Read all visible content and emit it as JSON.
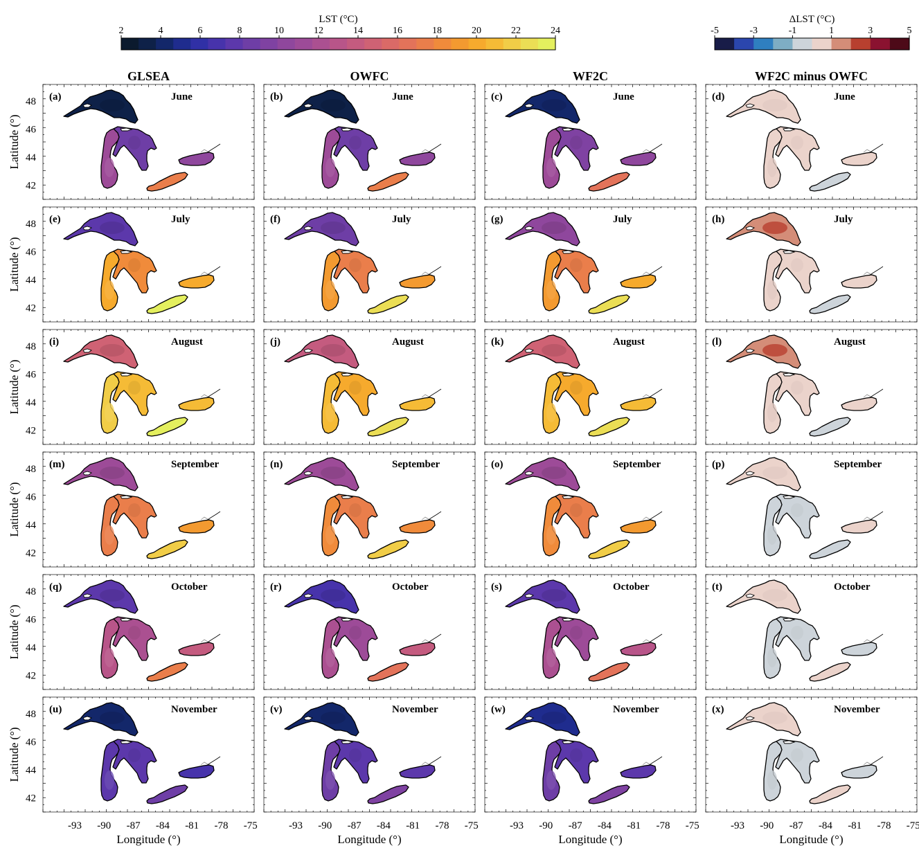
{
  "colorbars": {
    "lst": {
      "title": "LST (°C)",
      "ticks": [
        "2",
        "4",
        "6",
        "8",
        "10",
        "12",
        "14",
        "16",
        "18",
        "20",
        "22",
        "24"
      ],
      "colors": [
        "#0b1a2e",
        "#0e2148",
        "#13276a",
        "#1f2c8e",
        "#3030a6",
        "#4733ab",
        "#5c38ab",
        "#6e3ea6",
        "#7f42a2",
        "#8f479d",
        "#9d4b98",
        "#ab5091",
        "#b85589",
        "#c45b7f",
        "#cf6274",
        "#da6a67",
        "#e3735a",
        "#ea7e4b",
        "#f08b3b",
        "#f39a30",
        "#f6aa2d",
        "#f5bb36",
        "#f1cd47",
        "#ebde55",
        "#e4ef5e"
      ]
    },
    "dlst": {
      "title": "ΔLST (°C)",
      "ticks": [
        "-5",
        "-3",
        "-1",
        "1",
        "3",
        "5"
      ],
      "colors": [
        "#181c48",
        "#2b46ad",
        "#2f7fc0",
        "#7eadc4",
        "#cdd4da",
        "#ebd3cb",
        "#d48d78",
        "#b8402f",
        "#8a1230",
        "#4d0a18"
      ]
    }
  },
  "columns": [
    "GLSEA",
    "OWFC",
    "WF2C",
    "WF2C minus OWFC"
  ],
  "months": [
    "June",
    "July",
    "August",
    "September",
    "October",
    "November"
  ],
  "panel_letters": [
    [
      "(a)",
      "(b)",
      "(c)",
      "(d)"
    ],
    [
      "(e)",
      "(f)",
      "(g)",
      "(h)"
    ],
    [
      "(i)",
      "(j)",
      "(k)",
      "(l)"
    ],
    [
      "(m)",
      "(n)",
      "(o)",
      "(p)"
    ],
    [
      "(q)",
      "(r)",
      "(s)",
      "(t)"
    ],
    [
      "(u)",
      "(v)",
      "(w)",
      "(x)"
    ]
  ],
  "axes": {
    "ylabel": "Latitude (°)",
    "xlabel": "Longitude (°)",
    "yticks": [
      "48",
      "46",
      "44",
      "42"
    ],
    "xticks": [
      "-93",
      "-90",
      "-87",
      "-84",
      "-81",
      "-78",
      "-75"
    ]
  },
  "map_data": {
    "variable": "Lake surface temperature",
    "lake_temperature_c": {
      "GLSEA": {
        "June": {
          "superior": 3.5,
          "michigan": 11,
          "huron": 9,
          "erie": 17,
          "ontario": 10
        },
        "July": {
          "superior": 8,
          "michigan": 20,
          "huron": 18,
          "erie": 23.5,
          "ontario": 20
        },
        "August": {
          "superior": 15,
          "michigan": 21.5,
          "huron": 20.5,
          "erie": 23.5,
          "ontario": 21
        },
        "September": {
          "superior": 11,
          "michigan": 17.5,
          "huron": 17,
          "erie": 21.5,
          "ontario": 19
        },
        "October": {
          "superior": 7.5,
          "michigan": 13,
          "huron": 12,
          "erie": 17,
          "ontario": 14
        },
        "November": {
          "superior": 4.5,
          "michigan": 8,
          "huron": 7.5,
          "erie": 9,
          "ontario": 7
        }
      },
      "OWFC": {
        "June": {
          "superior": 3.5,
          "michigan": 11,
          "huron": 9,
          "erie": 17,
          "ontario": 10
        },
        "July": {
          "superior": 9,
          "michigan": 19,
          "huron": 17,
          "erie": 23,
          "ontario": 19.5
        },
        "August": {
          "superior": 13.5,
          "michigan": 21,
          "huron": 20,
          "erie": 23,
          "ontario": 20.5
        },
        "September": {
          "superior": 11,
          "michigan": 18,
          "huron": 17.5,
          "erie": 22,
          "ontario": 18.5
        },
        "October": {
          "superior": 7,
          "michigan": 12.5,
          "huron": 11.5,
          "erie": 16.5,
          "ontario": 13.5
        },
        "November": {
          "superior": 4.5,
          "michigan": 8.5,
          "huron": 8,
          "erie": 9.5,
          "ontario": 7.5
        }
      },
      "WF2C": {
        "June": {
          "superior": 3.8,
          "michigan": 11.2,
          "huron": 9.2,
          "erie": 16.8,
          "ontario": 10.4
        },
        "July": {
          "superior": 10.5,
          "michigan": 19.3,
          "huron": 17.4,
          "erie": 22.8,
          "ontario": 19.6
        },
        "August": {
          "superior": 15,
          "michigan": 21.2,
          "huron": 20.3,
          "erie": 22.8,
          "ontario": 20.8
        },
        "September": {
          "superior": 11.5,
          "michigan": 17.9,
          "huron": 17.4,
          "erie": 21.8,
          "ontario": 18.8
        },
        "October": {
          "superior": 7.4,
          "michigan": 12.4,
          "huron": 11.4,
          "erie": 16.8,
          "ontario": 13.4
        },
        "November": {
          "superior": 4.9,
          "michigan": 8.4,
          "huron": 7.9,
          "erie": 9.8,
          "ontario": 7.4
        }
      }
    },
    "difference_c": {
      "June": {
        "superior": 0.3,
        "michigan": 0.2,
        "huron": 0.2,
        "erie": -0.2,
        "ontario": 0.4
      },
      "July": {
        "superior": 1.5,
        "michigan": 0.3,
        "huron": 0.4,
        "erie": -0.2,
        "ontario": 0.1
      },
      "August": {
        "superior": 1.5,
        "michigan": 0.2,
        "huron": 0.3,
        "erie": -0.2,
        "ontario": 0.3
      },
      "September": {
        "superior": 0.5,
        "michigan": -0.1,
        "huron": -0.1,
        "erie": -0.2,
        "ontario": 0.3
      },
      "October": {
        "superior": 0.4,
        "michigan": -0.1,
        "huron": -0.1,
        "erie": 0.3,
        "ontario": -0.1
      },
      "November": {
        "superior": 0.4,
        "michigan": -0.1,
        "huron": -0.1,
        "erie": 0.3,
        "ontario": -0.1
      }
    }
  }
}
